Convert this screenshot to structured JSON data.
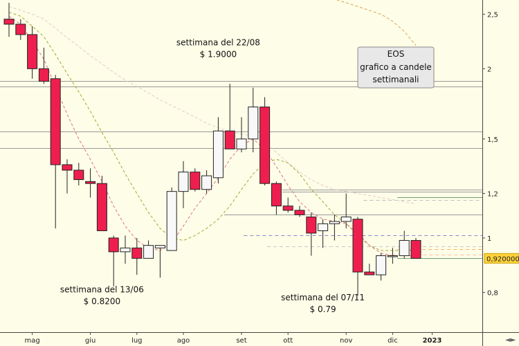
{
  "chart_data": {
    "type": "candlestick",
    "title": "",
    "legend": {
      "lines": [
        "EOS",
        "grafico a candele",
        "settimanali"
      ],
      "placement": "top-right"
    },
    "y_axis": {
      "scale": "log",
      "ticks": [
        "2,5",
        "2",
        "1,5",
        "1,2",
        "1",
        "0,8"
      ],
      "tick_values": [
        2.5,
        2.0,
        1.5,
        1.2,
        1.0,
        0.8
      ],
      "ylim": [
        0.68,
        2.65
      ],
      "current_price_label": "0,920000",
      "current_price": 0.92,
      "side": "right"
    },
    "x_axis": {
      "ticks": [
        "mag",
        "giu",
        "lug",
        "ago",
        "set",
        "ott",
        "nov",
        "dic",
        "2023"
      ],
      "tick_index": [
        2,
        7,
        11,
        15,
        20,
        24,
        29,
        33,
        36.4
      ]
    },
    "candles": [
      {
        "o": 2.45,
        "h": 2.62,
        "l": 2.28,
        "c": 2.4
      },
      {
        "o": 2.4,
        "h": 2.45,
        "l": 2.25,
        "c": 2.3
      },
      {
        "o": 2.3,
        "h": 2.38,
        "l": 1.92,
        "c": 2.0
      },
      {
        "o": 2.0,
        "h": 2.18,
        "l": 1.88,
        "c": 1.9
      },
      {
        "o": 1.92,
        "h": 1.95,
        "l": 1.04,
        "c": 1.35
      },
      {
        "o": 1.35,
        "h": 1.38,
        "l": 1.2,
        "c": 1.32
      },
      {
        "o": 1.32,
        "h": 1.36,
        "l": 1.24,
        "c": 1.27
      },
      {
        "o": 1.26,
        "h": 1.33,
        "l": 1.18,
        "c": 1.25
      },
      {
        "o": 1.25,
        "h": 1.29,
        "l": 1.03,
        "c": 1.03
      },
      {
        "o": 1.0,
        "h": 1.01,
        "l": 0.82,
        "c": 0.945
      },
      {
        "o": 0.945,
        "h": 1.01,
        "l": 0.9,
        "c": 0.96
      },
      {
        "o": 0.96,
        "h": 1.0,
        "l": 0.86,
        "c": 0.92
      },
      {
        "o": 0.92,
        "h": 0.99,
        "l": 0.92,
        "c": 0.97
      },
      {
        "o": 0.96,
        "h": 0.97,
        "l": 0.85,
        "c": 0.97
      },
      {
        "o": 0.95,
        "h": 1.23,
        "l": 0.95,
        "c": 1.21
      },
      {
        "o": 1.21,
        "h": 1.37,
        "l": 1.13,
        "c": 1.31
      },
      {
        "o": 1.31,
        "h": 1.33,
        "l": 1.21,
        "c": 1.22
      },
      {
        "o": 1.22,
        "h": 1.32,
        "l": 1.2,
        "c": 1.29
      },
      {
        "o": 1.28,
        "h": 1.64,
        "l": 1.25,
        "c": 1.55
      },
      {
        "o": 1.55,
        "h": 1.88,
        "l": 1.45,
        "c": 1.44
      },
      {
        "o": 1.44,
        "h": 1.64,
        "l": 1.42,
        "c": 1.5
      },
      {
        "o": 1.5,
        "h": 1.85,
        "l": 1.42,
        "c": 1.71
      },
      {
        "o": 1.71,
        "h": 1.78,
        "l": 1.24,
        "c": 1.25
      },
      {
        "o": 1.25,
        "h": 1.26,
        "l": 1.1,
        "c": 1.14
      },
      {
        "o": 1.14,
        "h": 1.18,
        "l": 1.11,
        "c": 1.12
      },
      {
        "o": 1.12,
        "h": 1.14,
        "l": 1.09,
        "c": 1.1
      },
      {
        "o": 1.09,
        "h": 1.11,
        "l": 0.93,
        "c": 1.02
      },
      {
        "o": 1.03,
        "h": 1.08,
        "l": 0.96,
        "c": 1.06
      },
      {
        "o": 1.06,
        "h": 1.1,
        "l": 0.99,
        "c": 1.07
      },
      {
        "o": 1.07,
        "h": 1.2,
        "l": 1.04,
        "c": 1.09
      },
      {
        "o": 1.08,
        "h": 1.09,
        "l": 0.79,
        "c": 0.87
      },
      {
        "o": 0.87,
        "h": 0.9,
        "l": 0.86,
        "c": 0.86
      },
      {
        "o": 0.86,
        "h": 0.94,
        "l": 0.84,
        "c": 0.93
      },
      {
        "o": 0.93,
        "h": 0.96,
        "l": 0.9,
        "c": 0.93
      },
      {
        "o": 0.93,
        "h": 1.03,
        "l": 0.92,
        "c": 0.99
      },
      {
        "o": 0.99,
        "h": 1.0,
        "l": 0.92,
        "c": 0.92
      }
    ],
    "moving_averages": [
      {
        "style": "dashed",
        "color": "#e0a050",
        "values": [
          null,
          null,
          null,
          null,
          null,
          null,
          null,
          null,
          null,
          null,
          null,
          null,
          null,
          null,
          null,
          null,
          null,
          null,
          null,
          null,
          null,
          null,
          null,
          null,
          null,
          null,
          null,
          2.7,
          2.66,
          2.62,
          2.58,
          2.54,
          2.5,
          2.43,
          2.33,
          2.2
        ]
      },
      {
        "style": "dashed",
        "color": "#e6c8c8",
        "values": [
          2.58,
          2.54,
          2.5,
          2.45,
          2.36,
          2.27,
          2.19,
          2.11,
          2.04,
          1.97,
          1.91,
          1.86,
          1.81,
          1.76,
          1.72,
          1.68,
          1.64,
          1.6,
          1.57,
          1.55,
          1.53,
          1.52,
          1.48,
          1.42,
          1.36,
          1.31,
          1.27,
          1.24,
          1.22,
          1.21,
          1.2,
          1.19,
          1.18,
          1.17,
          1.16,
          1.15
        ]
      },
      {
        "style": "dashed",
        "color": "#a4a830",
        "values": [
          2.52,
          2.48,
          2.38,
          2.28,
          2.12,
          1.96,
          1.82,
          1.68,
          1.54,
          1.42,
          1.3,
          1.2,
          1.11,
          1.04,
          1.0,
          0.99,
          1.01,
          1.04,
          1.08,
          1.14,
          1.22,
          1.3,
          1.36,
          1.38,
          1.36,
          1.3,
          1.22,
          1.16,
          1.1,
          1.06,
          1.01,
          0.97,
          0.95,
          0.95,
          0.95,
          0.95
        ]
      },
      {
        "style": "dashed",
        "color": "#e07088",
        "values": [
          2.48,
          2.4,
          2.24,
          2.08,
          1.86,
          1.66,
          1.5,
          1.38,
          1.26,
          1.14,
          1.05,
          0.99,
          0.96,
          0.95,
          0.98,
          1.05,
          1.13,
          1.2,
          1.28,
          1.38,
          1.46,
          1.5,
          1.44,
          1.34,
          1.24,
          1.16,
          1.11,
          1.08,
          1.07,
          1.06,
          1.02,
          0.97,
          0.94,
          0.93,
          0.93,
          0.93
        ]
      }
    ],
    "horizontal_levels": [
      {
        "value": 1.9,
        "style": "solid",
        "color": "#999999"
      },
      {
        "value": 1.86,
        "style": "solid",
        "color": "#999999"
      },
      {
        "value": 1.545,
        "style": "solid",
        "color": "#999999"
      },
      {
        "value": 1.445,
        "style": "solid",
        "color": "#999999"
      },
      {
        "value": 1.22,
        "style": "solid",
        "color": "#999999",
        "from_index": 23.5
      },
      {
        "value": 1.21,
        "style": "solid",
        "color": "#999999",
        "from_index": 23.5
      },
      {
        "value": 1.18,
        "style": "solid",
        "color": "#70a070",
        "from_index": 33.4
      },
      {
        "value": 1.17,
        "style": "dashed",
        "color": "#c0c0c0",
        "from_index": 30.5
      },
      {
        "value": 1.1,
        "style": "solid",
        "color": "#999999",
        "from_index": 18.5
      },
      {
        "value": 1.01,
        "style": "dashed",
        "color": "#8888cc",
        "from_index": 20.2
      },
      {
        "value": 0.965,
        "style": "dashed",
        "color": "#c8c8c8",
        "from_index": 22.2
      },
      {
        "value": 0.955,
        "style": "dashed",
        "color": "#ffb060",
        "from_index": 33.4
      },
      {
        "value": 0.935,
        "style": "dashed",
        "color": "#ffc0a0",
        "from_index": 32.4
      },
      {
        "value": 0.92,
        "style": "solid",
        "color": "#70a070",
        "from_index": 33.4
      }
    ],
    "annotations": [
      {
        "lines": [
          "settimana del 22/08",
          "$ 1.9000"
        ],
        "candle": 18,
        "anchor_value": 2.2
      },
      {
        "lines": [
          "settimana del 13/06",
          "$ 0.8200"
        ],
        "candle": 8,
        "anchor_value": 0.8
      },
      {
        "lines": [
          "settimana del 07/11",
          "$ 0.79"
        ],
        "candle": 27,
        "anchor_value": 0.775
      }
    ],
    "colors": {
      "bear": "#ee1f4e",
      "bull": "#f8f8f8",
      "background": "#fdfde8",
      "grid": "#999999"
    }
  }
}
